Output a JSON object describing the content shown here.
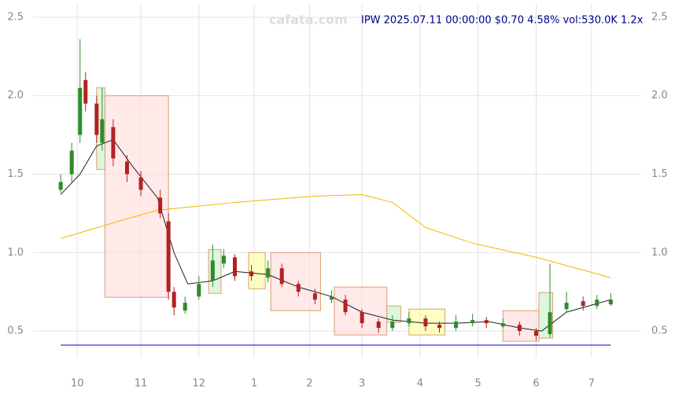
{
  "chart_data": {
    "type": "candlestick",
    "title": "IPW 2025.07.11 00:00:00 $0.70 4.58% vol:530.0K 1.2x",
    "watermark": "cafata.com",
    "xlim": [
      -9,
      211
    ],
    "ylim": [
      0.33,
      2.585
    ],
    "xticks": [
      {
        "value": 7,
        "label": "10"
      },
      {
        "value": 30,
        "label": "11"
      },
      {
        "value": 51,
        "label": "12"
      },
      {
        "value": 71,
        "label": "1"
      },
      {
        "value": 91,
        "label": "2"
      },
      {
        "value": 110,
        "label": "3"
      },
      {
        "value": 131,
        "label": "4"
      },
      {
        "value": 152,
        "label": "5"
      },
      {
        "value": 173,
        "label": "6"
      },
      {
        "value": 193,
        "label": "7"
      }
    ],
    "yticks": [
      {
        "value": 0.5,
        "label": "0.5"
      },
      {
        "value": 1.0,
        "label": "1.0"
      },
      {
        "value": 1.5,
        "label": "1.5"
      },
      {
        "value": 2.0,
        "label": "2.0"
      },
      {
        "value": 2.5,
        "label": "2.5"
      }
    ],
    "grid": true,
    "up_color": "#2e8b2e",
    "down_color": "#b22222",
    "x": [
      1,
      5,
      8,
      10,
      14,
      16,
      20,
      25,
      30,
      37,
      40,
      42,
      46,
      51,
      56,
      60,
      64,
      70,
      76,
      81,
      87,
      93,
      99,
      104,
      110,
      116,
      121,
      127,
      133,
      138,
      144,
      150,
      155,
      161,
      167,
      173,
      178,
      184,
      190,
      195,
      200
    ],
    "open": [
      1.4,
      1.5,
      1.75,
      2.1,
      1.95,
      1.7,
      1.8,
      1.58,
      1.48,
      1.35,
      1.2,
      0.75,
      0.63,
      0.72,
      0.82,
      0.93,
      0.97,
      0.88,
      0.84,
      0.9,
      0.8,
      0.74,
      0.7,
      0.7,
      0.62,
      0.56,
      0.52,
      0.55,
      0.58,
      0.54,
      0.52,
      0.55,
      0.57,
      0.53,
      0.54,
      0.5,
      0.48,
      0.64,
      0.69,
      0.66,
      0.67
    ],
    "high": [
      1.5,
      1.7,
      2.36,
      2.15,
      2.0,
      2.05,
      1.85,
      1.62,
      1.52,
      1.4,
      1.25,
      0.78,
      0.72,
      0.85,
      1.05,
      1.02,
      0.99,
      0.92,
      0.95,
      0.93,
      0.82,
      0.77,
      0.76,
      0.73,
      0.64,
      0.58,
      0.6,
      0.62,
      0.6,
      0.56,
      0.6,
      0.61,
      0.59,
      0.58,
      0.56,
      0.52,
      0.93,
      0.75,
      0.72,
      0.73,
      0.74
    ],
    "low": [
      1.38,
      1.45,
      1.7,
      1.9,
      1.7,
      1.65,
      1.55,
      1.45,
      1.36,
      1.22,
      0.7,
      0.6,
      0.61,
      0.7,
      0.78,
      0.9,
      0.82,
      0.82,
      0.81,
      0.78,
      0.72,
      0.67,
      0.68,
      0.6,
      0.52,
      0.49,
      0.5,
      0.53,
      0.5,
      0.49,
      0.5,
      0.53,
      0.52,
      0.52,
      0.47,
      0.44,
      0.46,
      0.62,
      0.63,
      0.64,
      0.66
    ],
    "close": [
      1.45,
      1.65,
      2.05,
      1.95,
      1.75,
      1.85,
      1.6,
      1.5,
      1.4,
      1.25,
      0.75,
      0.65,
      0.68,
      0.8,
      0.95,
      0.98,
      0.85,
      0.85,
      0.9,
      0.8,
      0.75,
      0.7,
      0.72,
      0.62,
      0.55,
      0.52,
      0.56,
      0.58,
      0.53,
      0.52,
      0.56,
      0.57,
      0.55,
      0.55,
      0.5,
      0.47,
      0.62,
      0.68,
      0.66,
      0.7,
      0.7
    ],
    "lines": [
      {
        "color": "#222222",
        "x": [
          1,
          8,
          14,
          20,
          27,
          36,
          42,
          47,
          56,
          64,
          76,
          87,
          99,
          110,
          121,
          133,
          144,
          156,
          167,
          175,
          184,
          200
        ],
        "values": [
          1.37,
          1.5,
          1.68,
          1.72,
          1.55,
          1.35,
          1.0,
          0.8,
          0.82,
          0.88,
          0.86,
          0.78,
          0.72,
          0.62,
          0.57,
          0.55,
          0.55,
          0.56,
          0.52,
          0.5,
          0.62,
          0.7
        ]
      },
      {
        "color": "#f5b800",
        "x": [
          1,
          22,
          36,
          64,
          93,
          110,
          121,
          133,
          150,
          173,
          200
        ],
        "values": [
          1.09,
          1.2,
          1.27,
          1.32,
          1.36,
          1.37,
          1.32,
          1.16,
          1.06,
          0.97,
          0.84
        ]
      }
    ],
    "boxes": [
      {
        "x": [
          17,
          40
        ],
        "y": [
          0.715,
          2.0
        ],
        "color": "#ffdada"
      },
      {
        "x": [
          14,
          17
        ],
        "y": [
          1.53,
          2.05
        ],
        "color": "#c8f0c8"
      },
      {
        "x": [
          54.5,
          59
        ],
        "y": [
          0.74,
          1.02
        ],
        "color": "#c8f0c8"
      },
      {
        "x": [
          69,
          75
        ],
        "y": [
          0.77,
          1.0
        ],
        "color": "#ffff99"
      },
      {
        "x": [
          77,
          95
        ],
        "y": [
          0.63,
          1.0
        ],
        "color": "#ffdada"
      },
      {
        "x": [
          100,
          119
        ],
        "y": [
          0.475,
          0.78
        ],
        "color": "#ffdada"
      },
      {
        "x": [
          119,
          124
        ],
        "y": [
          0.555,
          0.66
        ],
        "color": "#c8f0c8"
      },
      {
        "x": [
          127,
          140
        ],
        "y": [
          0.475,
          0.64
        ],
        "color": "#ffff99"
      },
      {
        "x": [
          161,
          174
        ],
        "y": [
          0.435,
          0.63
        ],
        "color": "#ffdada"
      },
      {
        "x": [
          174,
          179
        ],
        "y": [
          0.455,
          0.745
        ],
        "color": "#c8f0c8"
      }
    ],
    "hlines": [
      {
        "y": 0.41,
        "x": [
          1,
          200
        ],
        "color": "#0000cc"
      }
    ]
  }
}
